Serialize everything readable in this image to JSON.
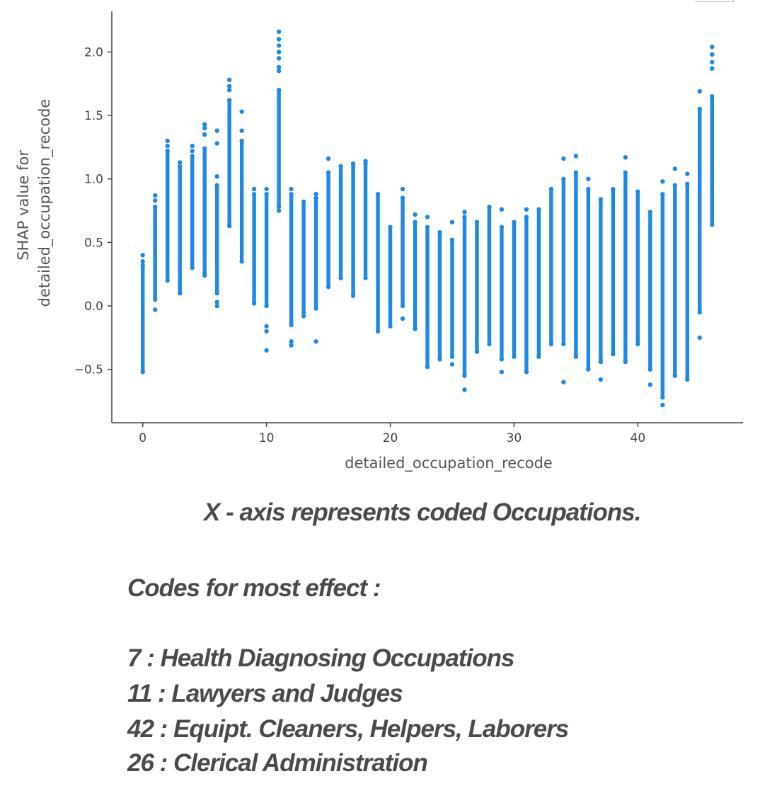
{
  "chart_data": {
    "type": "scatter",
    "title": "",
    "xlabel": "detailed_occupation_recode",
    "ylabel": [
      "SHAP value for",
      "detailed_occupation_recode"
    ],
    "xlim": [
      -2.5,
      48.5
    ],
    "ylim": [
      -0.92,
      2.32
    ],
    "x_ticks": [
      0,
      10,
      20,
      30,
      40
    ],
    "x_tick_labels": [
      "0",
      "10",
      "20",
      "30",
      "40"
    ],
    "y_ticks": [
      2.0,
      1.5,
      1.0,
      0.5,
      0.0,
      -0.5
    ],
    "y_tick_labels": [
      "2.0",
      "1.5",
      "1.0",
      "0.5",
      "0.0",
      "−0.5"
    ],
    "grid": false,
    "point_color": "#1e88e5",
    "series": [
      {
        "columns": [
          {
            "x": 0,
            "min": -0.52,
            "max": 0.32,
            "outliers": [
              0.4,
              0.35
            ]
          },
          {
            "x": 1,
            "min": 0.05,
            "max": 0.78,
            "outliers": [
              0.87,
              0.83,
              -0.03
            ]
          },
          {
            "x": 2,
            "min": 0.2,
            "max": 1.22,
            "outliers": [
              1.3,
              1.26
            ]
          },
          {
            "x": 3,
            "min": 0.1,
            "max": 1.1,
            "outliers": [
              1.13
            ]
          },
          {
            "x": 4,
            "min": 0.3,
            "max": 1.18,
            "outliers": [
              1.26,
              1.22
            ]
          },
          {
            "x": 5,
            "min": 0.24,
            "max": 1.24,
            "outliers": [
              1.43,
              1.4,
              1.35
            ]
          },
          {
            "x": 6,
            "min": 0.1,
            "max": 0.95,
            "outliers": [
              1.38,
              1.28,
              1.02,
              0.0,
              0.03
            ]
          },
          {
            "x": 7,
            "min": 0.63,
            "max": 1.62,
            "outliers": [
              1.78,
              1.73,
              1.7
            ]
          },
          {
            "x": 8,
            "min": 0.35,
            "max": 1.3,
            "outliers": [
              1.53,
              1.38
            ]
          },
          {
            "x": 9,
            "min": 0.02,
            "max": 0.88,
            "outliers": [
              0.92
            ]
          },
          {
            "x": 10,
            "min": 0.0,
            "max": 0.88,
            "outliers": [
              0.92,
              -0.16,
              -0.2,
              -0.35
            ]
          },
          {
            "x": 11,
            "min": 0.78,
            "max": 1.7,
            "outliers": [
              2.16,
              2.1,
              2.05,
              2.0,
              1.95,
              1.88,
              1.85,
              0.75
            ]
          },
          {
            "x": 12,
            "min": -0.15,
            "max": 0.88,
            "outliers": [
              0.92,
              -0.28,
              -0.31
            ]
          },
          {
            "x": 13,
            "min": -0.05,
            "max": 0.82,
            "outliers": [
              -0.08
            ]
          },
          {
            "x": 14,
            "min": -0.02,
            "max": 0.85,
            "outliers": [
              0.88,
              -0.28
            ]
          },
          {
            "x": 15,
            "min": 0.15,
            "max": 1.05,
            "outliers": [
              1.16
            ]
          },
          {
            "x": 16,
            "min": 0.22,
            "max": 1.1,
            "outliers": []
          },
          {
            "x": 17,
            "min": 0.08,
            "max": 1.12,
            "outliers": []
          },
          {
            "x": 18,
            "min": 0.22,
            "max": 1.12,
            "outliers": [
              1.14
            ]
          },
          {
            "x": 19,
            "min": -0.2,
            "max": 0.88,
            "outliers": []
          },
          {
            "x": 20,
            "min": -0.16,
            "max": 0.62,
            "outliers": []
          },
          {
            "x": 21,
            "min": 0.0,
            "max": 0.85,
            "outliers": [
              0.92,
              -0.1
            ]
          },
          {
            "x": 22,
            "min": -0.18,
            "max": 0.66,
            "outliers": [
              0.72
            ]
          },
          {
            "x": 23,
            "min": -0.48,
            "max": 0.62,
            "outliers": [
              0.7
            ]
          },
          {
            "x": 24,
            "min": -0.42,
            "max": 0.58,
            "outliers": []
          },
          {
            "x": 25,
            "min": -0.4,
            "max": 0.52,
            "outliers": [
              0.66,
              -0.46
            ]
          },
          {
            "x": 26,
            "min": -0.55,
            "max": 0.7,
            "outliers": [
              0.74,
              -0.66
            ]
          },
          {
            "x": 27,
            "min": -0.36,
            "max": 0.66,
            "outliers": []
          },
          {
            "x": 28,
            "min": -0.3,
            "max": 0.78,
            "outliers": []
          },
          {
            "x": 29,
            "min": -0.42,
            "max": 0.62,
            "outliers": [
              0.76,
              -0.52
            ]
          },
          {
            "x": 30,
            "min": -0.4,
            "max": 0.66,
            "outliers": []
          },
          {
            "x": 31,
            "min": -0.52,
            "max": 0.7,
            "outliers": [
              0.76
            ]
          },
          {
            "x": 32,
            "min": -0.4,
            "max": 0.76,
            "outliers": []
          },
          {
            "x": 33,
            "min": -0.3,
            "max": 0.92,
            "outliers": []
          },
          {
            "x": 34,
            "min": -0.3,
            "max": 1.0,
            "outliers": [
              1.16,
              -0.6
            ]
          },
          {
            "x": 35,
            "min": -0.4,
            "max": 1.05,
            "outliers": [
              1.18
            ]
          },
          {
            "x": 36,
            "min": -0.5,
            "max": 0.92,
            "outliers": [
              1.0
            ]
          },
          {
            "x": 37,
            "min": -0.44,
            "max": 0.84,
            "outliers": [
              -0.58
            ]
          },
          {
            "x": 38,
            "min": -0.38,
            "max": 0.92,
            "outliers": []
          },
          {
            "x": 39,
            "min": -0.44,
            "max": 1.05,
            "outliers": [
              1.17
            ]
          },
          {
            "x": 40,
            "min": -0.3,
            "max": 0.9,
            "outliers": []
          },
          {
            "x": 41,
            "min": -0.5,
            "max": 0.74,
            "outliers": [
              -0.62
            ]
          },
          {
            "x": 42,
            "min": -0.72,
            "max": 0.88,
            "outliers": [
              0.98,
              -0.78
            ]
          },
          {
            "x": 43,
            "min": -0.55,
            "max": 0.95,
            "outliers": [
              1.08
            ]
          },
          {
            "x": 44,
            "min": -0.58,
            "max": 0.96,
            "outliers": [
              1.04
            ]
          },
          {
            "x": 45,
            "min": -0.05,
            "max": 1.55,
            "outliers": [
              1.69,
              -0.25
            ]
          },
          {
            "x": 46,
            "min": 0.64,
            "max": 1.65,
            "outliers": [
              2.04,
              1.98,
              1.92,
              1.87
            ]
          }
        ]
      }
    ]
  },
  "caption": {
    "note": "X  - axis represents coded Occupations.",
    "heading": "Codes for most effect :",
    "codes": [
      "7 : Health Diagnosing Occupations",
      "11 : Lawyers and Judges",
      "42 : Equipt. Cleaners, Helpers, Laborers",
      "26 : Clerical Administration"
    ]
  }
}
